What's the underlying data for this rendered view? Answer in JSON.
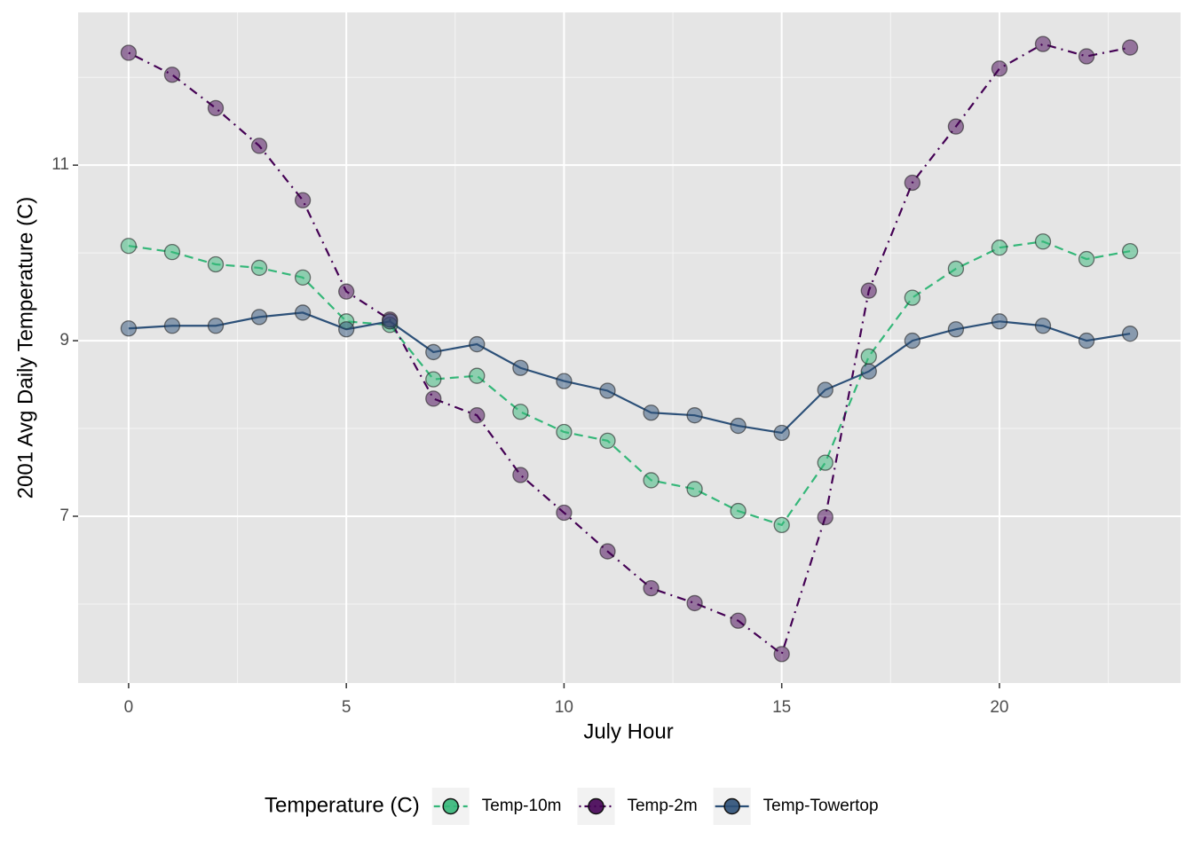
{
  "chart_data": {
    "type": "line",
    "x_label": "July Hour",
    "y_label": "2001 Avg Daily Temperature (C)",
    "x": [
      0,
      1,
      2,
      3,
      4,
      5,
      6,
      7,
      8,
      9,
      10,
      11,
      12,
      13,
      14,
      15,
      16,
      17,
      18,
      19,
      20,
      21,
      22,
      23
    ],
    "series": [
      {
        "name": "Temp-10m",
        "color": "#35b779",
        "dash": "dashed",
        "values": [
          10.08,
          10.01,
          9.87,
          9.83,
          9.72,
          9.22,
          9.18,
          8.56,
          8.6,
          8.19,
          7.96,
          7.86,
          7.41,
          7.31,
          7.06,
          6.9,
          7.61,
          8.82,
          9.49,
          9.82,
          10.06,
          10.13,
          9.93,
          10.02
        ]
      },
      {
        "name": "Temp-2m",
        "color": "#440154",
        "dash": "dotdash",
        "values": [
          12.28,
          12.03,
          11.65,
          11.22,
          10.6,
          9.56,
          9.24,
          8.34,
          8.15,
          7.47,
          7.04,
          6.6,
          6.18,
          6.01,
          5.81,
          5.43,
          6.99,
          9.57,
          10.8,
          11.44,
          12.1,
          12.38,
          12.24,
          12.34
        ]
      },
      {
        "name": "Temp-Towertop",
        "color": "#2c5078",
        "dash": "solid",
        "values": [
          9.14,
          9.17,
          9.17,
          9.27,
          9.32,
          9.13,
          9.22,
          8.87,
          8.96,
          8.69,
          8.54,
          8.43,
          8.18,
          8.15,
          8.03,
          7.95,
          8.44,
          8.65,
          9.0,
          9.13,
          9.22,
          9.17,
          9.0,
          9.08
        ]
      }
    ],
    "xlim": [
      -1.16,
      24.16
    ],
    "xticks": [
      0,
      5,
      10,
      15,
      20
    ],
    "x_minor_ticks": [
      2.5,
      7.5,
      12.5,
      17.5,
      22.5
    ],
    "ylim": [
      5.1,
      12.74
    ],
    "yticks": [
      7,
      9,
      11
    ],
    "y_minor_ticks": [
      6,
      8,
      10,
      12
    ],
    "grid": true,
    "legend_title": "Temperature (C)",
    "legend_position": "bottom"
  }
}
